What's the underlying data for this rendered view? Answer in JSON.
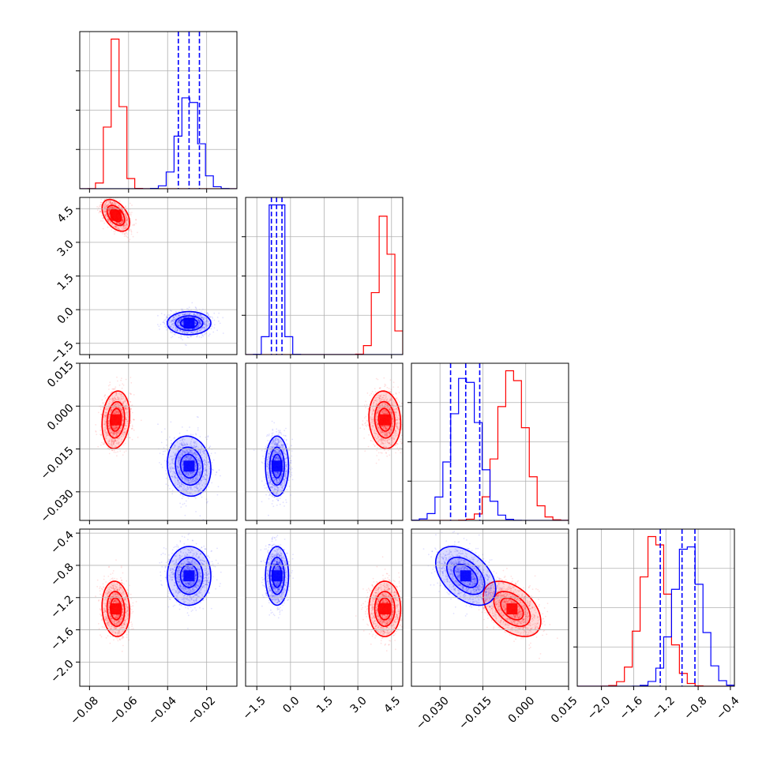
{
  "chart_data": {
    "type": "corner",
    "grid": true,
    "colors": {
      "series_a": "#ff0000",
      "series_b": "#0000ff",
      "grid": "#b0b0b0"
    },
    "parameters": [
      {
        "range": [
          -0.085,
          -0.0045
        ],
        "ticks": [
          -0.08,
          -0.06,
          -0.04,
          -0.02
        ],
        "tick_labels": [
          "−0.08",
          "−0.06",
          "−0.04",
          "−0.02"
        ]
      },
      {
        "range": [
          -2.0,
          5.0
        ],
        "ticks": [
          -1.5,
          0.0,
          1.5,
          3.0,
          4.5
        ],
        "tick_labels": [
          "−1.5",
          "0.0",
          "1.5",
          "3.0",
          "4.5"
        ]
      },
      {
        "range": [
          -0.04,
          0.015
        ],
        "ticks": [
          -0.03,
          -0.015,
          0.0,
          0.015
        ],
        "tick_labels": [
          "−0.030",
          "−0.015",
          "0.000",
          "0.015"
        ]
      },
      {
        "range": [
          -2.3,
          -0.35
        ],
        "ticks": [
          -2.0,
          -1.6,
          -1.2,
          -0.8,
          -0.4
        ],
        "tick_labels": [
          "−2.0",
          "−1.6",
          "−1.2",
          "−0.8",
          "−0.4"
        ]
      }
    ],
    "series": [
      {
        "key": "a",
        "color": "#ff0000",
        "means": [
          -0.0665,
          4.2,
          -0.0048,
          -1.34
        ],
        "sds": [
          0.0033,
          0.33,
          0.0047,
          0.16
        ],
        "correlations": {
          "0_1": -0.45,
          "0_2": 0.15,
          "0_3": -0.1,
          "1_2": -0.1,
          "1_3": 0.0,
          "2_3": -0.45
        }
      },
      {
        "key": "b",
        "color": "#0000ff",
        "means": [
          -0.029,
          -0.6,
          -0.021,
          -0.93
        ],
        "sds": [
          0.0052,
          0.24,
          0.0049,
          0.17
        ],
        "correlations": {
          "0_1": 0.0,
          "0_2": -0.1,
          "0_3": 0.0,
          "1_2": 0.0,
          "1_3": 0.0,
          "2_3": -0.45
        }
      }
    ],
    "quantile_lines": {
      "color": "#0000ff",
      "values": [
        [
          -0.0345,
          -0.029,
          -0.0237
        ],
        [
          -0.85,
          -0.62,
          -0.38
        ],
        [
          -0.0263,
          -0.021,
          -0.0161
        ],
        [
          -1.27,
          -1.0,
          -0.84
        ]
      ]
    },
    "histogram_bins": 20,
    "contour_levels": [
      0.3,
      0.6,
      0.9
    ]
  }
}
